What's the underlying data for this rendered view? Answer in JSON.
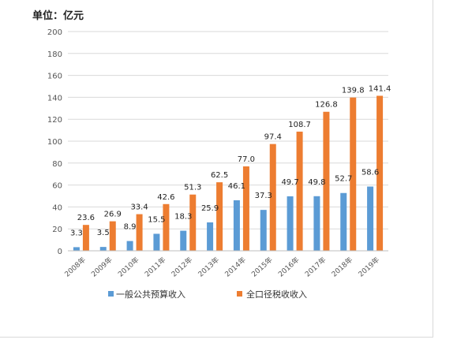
{
  "chart_data": {
    "type": "bar",
    "unit_label": "单位：亿元",
    "categories": [
      "2008年",
      "2009年",
      "2010年",
      "2011年",
      "2012年",
      "2013年",
      "2014年",
      "2015年",
      "2016年",
      "2017年",
      "2018年",
      "2019年"
    ],
    "series": [
      {
        "name": "一般公共预算收入",
        "color": "#5b9bd5",
        "values": [
          3.3,
          3.5,
          8.9,
          15.5,
          18.3,
          25.9,
          46.1,
          37.3,
          49.7,
          49.8,
          52.7,
          58.6
        ],
        "labels": [
          "3.3",
          "3.5",
          "8.9",
          "15.5",
          "18.3",
          "25.9",
          "46.1",
          "37.3",
          "49.7",
          "49.8",
          "52.7",
          "58.6"
        ]
      },
      {
        "name": "全口径税收收入",
        "color": "#ed7d31",
        "values": [
          23.6,
          26.9,
          33.4,
          42.6,
          51.3,
          62.5,
          77.0,
          97.4,
          108.7,
          126.8,
          139.8,
          141.4
        ],
        "labels": [
          "23.6",
          "26.9",
          "33.4",
          "42.6",
          "51.3",
          "62.5",
          "77.0",
          "97.4",
          "108.7",
          "126.8",
          "139.8",
          "141.4"
        ]
      }
    ],
    "ylim": [
      0,
      200
    ],
    "yticks": [
      "0",
      "20",
      "40",
      "60",
      "80",
      "100",
      "120",
      "140",
      "160",
      "180",
      "200"
    ],
    "grid": true,
    "legend": "bottom"
  }
}
